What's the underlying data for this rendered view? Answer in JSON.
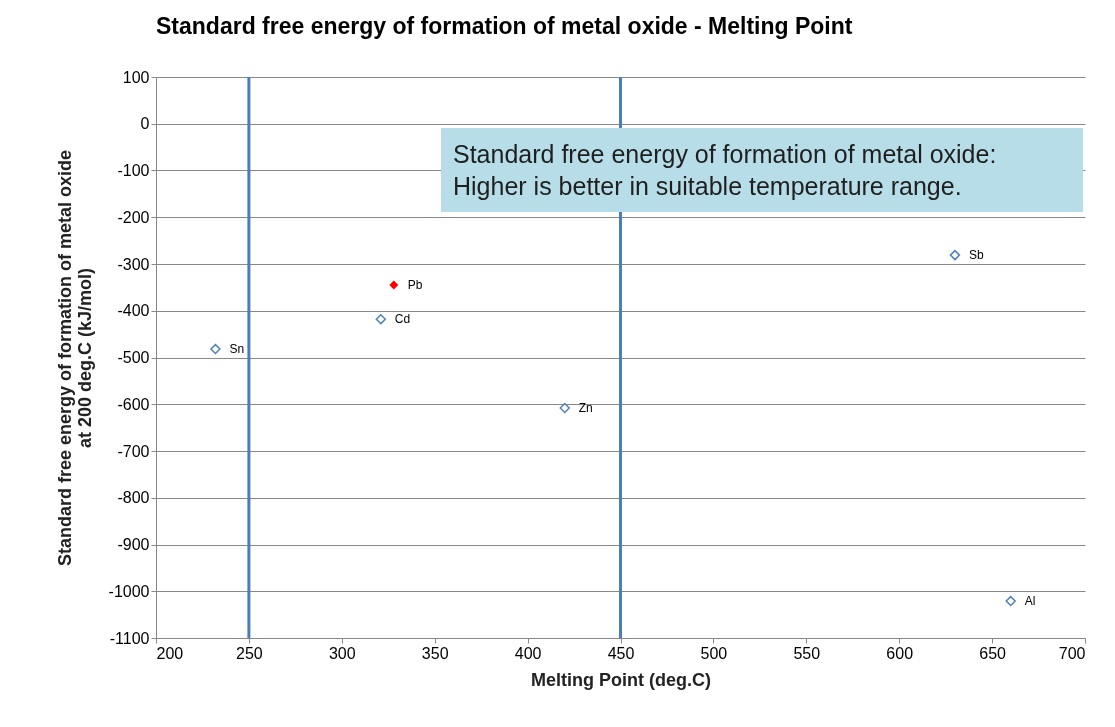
{
  "chart_data": {
    "type": "scatter",
    "title": "Standard free energy of formation of metal oxide - Melting Point",
    "xlabel": "Melting Point (deg.C)",
    "ylabel": "Standard free energy of formation of metal oxide at 200 deg.C (kJ/mol)",
    "series": [
      {
        "color": "#4f81bd",
        "x": [
          232,
          321,
          420,
          630,
          660
        ],
        "values": [
          -482,
          -418,
          -608,
          -281,
          -1021
        ],
        "value_labels": [
          "Sn",
          "Cd",
          "Zn",
          "Sb",
          "Al"
        ]
      },
      {
        "color": "#ff0000",
        "x": [
          328
        ],
        "values": [
          -345
        ],
        "value_labels": [
          "Pb"
        ]
      }
    ],
    "xlim": [
      200,
      700
    ],
    "xticks": [
      200,
      250,
      300,
      350,
      400,
      450,
      500,
      550,
      600,
      650,
      700
    ],
    "ylim": [
      -1100,
      100
    ],
    "yticks": [
      -1100,
      -1000,
      -900,
      -800,
      -700,
      -600,
      -500,
      -400,
      -300,
      -200,
      -100,
      0,
      100
    ],
    "ref_lines": [
      {
        "axis": "x",
        "value": 250,
        "color": "#4a7ebb"
      },
      {
        "axis": "x",
        "value": 450,
        "color": "#4a7ebb"
      }
    ],
    "annotations": [
      "Standard free energy of formation of metal oxide:",
      "Higher is better in suitable temperature range."
    ],
    "grid": "y",
    "marker": "diamond"
  }
}
